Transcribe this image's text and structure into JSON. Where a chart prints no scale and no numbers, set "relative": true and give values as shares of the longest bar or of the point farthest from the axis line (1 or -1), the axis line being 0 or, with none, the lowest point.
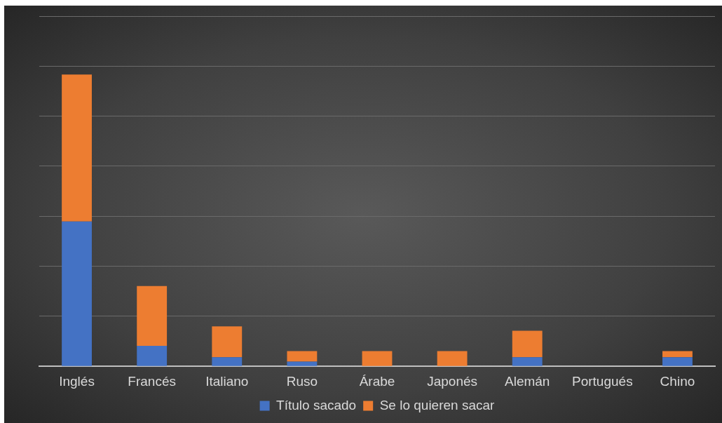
{
  "chart_data": {
    "type": "bar",
    "stacked": true,
    "relative": true,
    "grid": "y",
    "legend": "bottom",
    "categories": [
      "Inglés",
      "Francés",
      "Italiano",
      "Ruso",
      "Árabe",
      "Japonés",
      "Alemán",
      "Portugués",
      "Chino"
    ],
    "series": [
      {
        "name": "Título sacado",
        "color": "#4472c4",
        "values": [
          0.496,
          0.07,
          0.031,
          0.016,
          0,
          0,
          0.031,
          0,
          0.031
        ]
      },
      {
        "name": "Se lo quieren sacar",
        "color": "#ed7d31",
        "values": [
          0.504,
          0.205,
          0.106,
          0.036,
          0.052,
          0.052,
          0.091,
          0,
          0.021
        ]
      }
    ]
  }
}
